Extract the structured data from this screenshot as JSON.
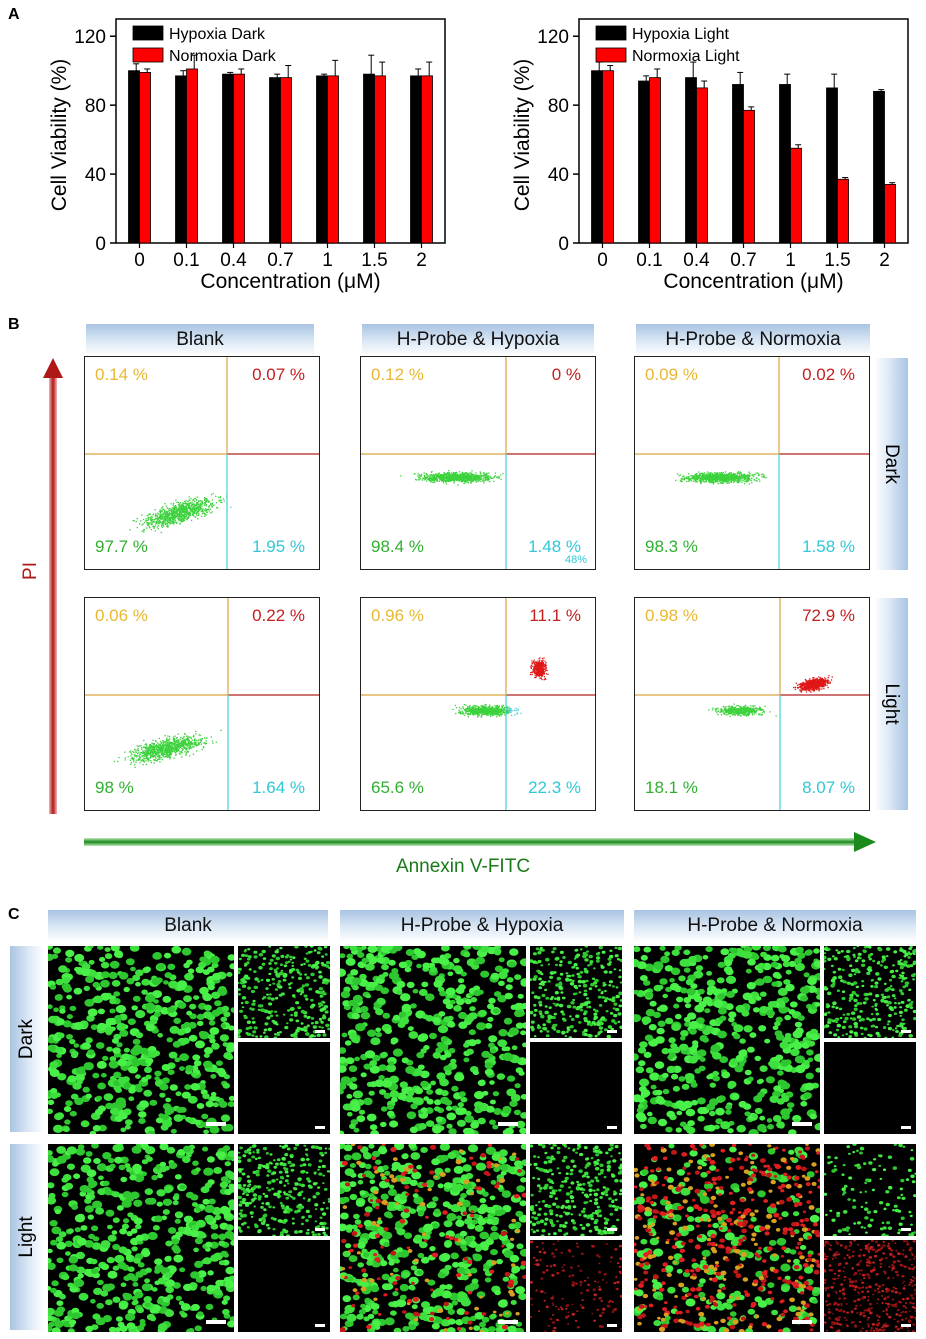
{
  "panels": {
    "a": "A",
    "b": "B",
    "c": "C"
  },
  "chart_data": [
    {
      "type": "bar",
      "panel": "A-left",
      "categories": [
        "0",
        "0.1",
        "0.4",
        "0.7",
        "1",
        "1.5",
        "2"
      ],
      "series": [
        {
          "name": "Hypoxia Dark",
          "color": "#000000",
          "values": [
            100,
            97,
            98,
            96,
            97,
            98,
            97
          ],
          "errors": [
            4,
            3,
            1,
            2,
            1,
            11,
            4
          ]
        },
        {
          "name": "Normoxia Dark",
          "color": "#ff0000",
          "values": [
            99,
            101,
            98,
            96,
            97,
            97,
            97
          ],
          "errors": [
            2,
            8,
            3,
            7,
            9,
            8,
            8
          ]
        }
      ],
      "xlabel": "Concentration (μM)",
      "ylabel": "Cell Viability (%)",
      "ylim": [
        0,
        130
      ],
      "yticks": [
        "0",
        "40",
        "80",
        "120"
      ],
      "legend": "top-left"
    },
    {
      "type": "bar",
      "panel": "A-right",
      "categories": [
        "0",
        "0.1",
        "0.4",
        "0.7",
        "1",
        "1.5",
        "2"
      ],
      "series": [
        {
          "name": "Hypoxia Light",
          "color": "#000000",
          "values": [
            100,
            94,
            96,
            92,
            92,
            90,
            88
          ],
          "errors": [
            5,
            3,
            9,
            7,
            6,
            8,
            1
          ]
        },
        {
          "name": "Normoxia Light",
          "color": "#ff0000",
          "values": [
            100,
            96,
            90,
            77,
            55,
            37,
            34
          ],
          "errors": [
            3,
            5,
            4,
            2,
            2,
            1,
            1
          ]
        }
      ],
      "xlabel": "Concentration (μM)",
      "ylabel": "Cell Viability (%)",
      "ylim": [
        0,
        130
      ],
      "yticks": [
        "0",
        "40",
        "80",
        "120"
      ],
      "legend": "top-left"
    }
  ],
  "flow": {
    "columns": [
      "Blank",
      "H-Probe & Hypoxia",
      "H-Probe & Normoxia"
    ],
    "rows": [
      "Dark",
      "Light"
    ],
    "y_axis_label": "PI",
    "x_axis_label": "Annexin V-FITC",
    "stray_label": "48%",
    "cells": [
      {
        "ul": "0.14 %",
        "ur": "0.07 %",
        "ll": "97.7 %",
        "lr": "1.95 %"
      },
      {
        "ul": "0.12 %",
        "ur": "0 %",
        "ll": "98.4 %",
        "lr": "1.48 %"
      },
      {
        "ul": "0.09 %",
        "ur": "0.02 %",
        "ll": "98.3 %",
        "lr": "1.58 %"
      },
      {
        "ul": "0.06 %",
        "ur": "0.22 %",
        "ll": "98 %",
        "lr": "1.64 %"
      },
      {
        "ul": "0.96 %",
        "ur": "11.1 %",
        "ll": "65.6 %",
        "lr": "22.3 %"
      },
      {
        "ul": "0.98 %",
        "ur": "72.9 %",
        "ll": "18.1 %",
        "lr": "8.07 %"
      }
    ],
    "colors": {
      "ul": "#e8b830",
      "ur": "#c42020",
      "ll": "#30b030",
      "lr": "#30c8d8"
    }
  },
  "microscopy": {
    "columns": [
      "Blank",
      "H-Probe & Hypoxia",
      "H-Probe & Normoxia"
    ],
    "rows": [
      "Dark",
      "Light"
    ]
  }
}
